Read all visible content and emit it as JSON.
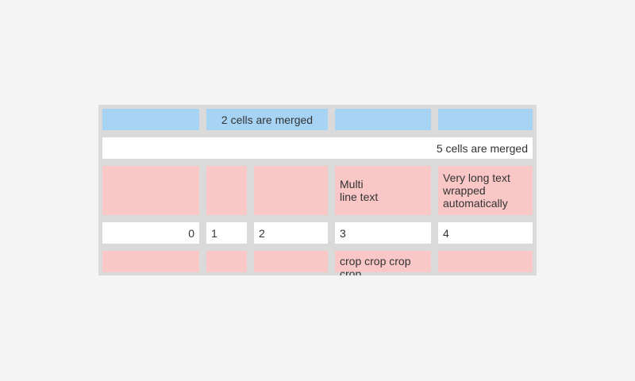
{
  "page": {
    "background_color": "#f4f4f4"
  },
  "table": {
    "colors": {
      "header_blue": "#a7d4f5",
      "row_pink": "#f9c7c6",
      "row_white": "#ffffff",
      "grid_gray": "#dadada",
      "text": "#333333"
    },
    "rows": [
      {
        "cells": [
          {
            "text": ""
          },
          {
            "text": "2 cells are merged",
            "colspan": 2,
            "align": "center"
          },
          {
            "text": ""
          },
          {
            "text": ""
          }
        ]
      },
      {
        "cells": [
          {
            "text": "5 cells are merged",
            "colspan": 5,
            "align": "right"
          }
        ]
      },
      {
        "cells": [
          {
            "text": ""
          },
          {
            "text": ""
          },
          {
            "text": ""
          },
          {
            "text": "Multi\nline text"
          },
          {
            "text": "Very long text wrapped automatically"
          }
        ]
      },
      {
        "cells": [
          {
            "text": "0",
            "align": "right"
          },
          {
            "text": "1"
          },
          {
            "text": "2"
          },
          {
            "text": "3"
          },
          {
            "text": "4"
          }
        ]
      },
      {
        "cells": [
          {
            "text": ""
          },
          {
            "text": ""
          },
          {
            "text": ""
          },
          {
            "text": "crop crop crop crop",
            "cropped": true
          },
          {
            "text": ""
          }
        ]
      }
    ]
  }
}
